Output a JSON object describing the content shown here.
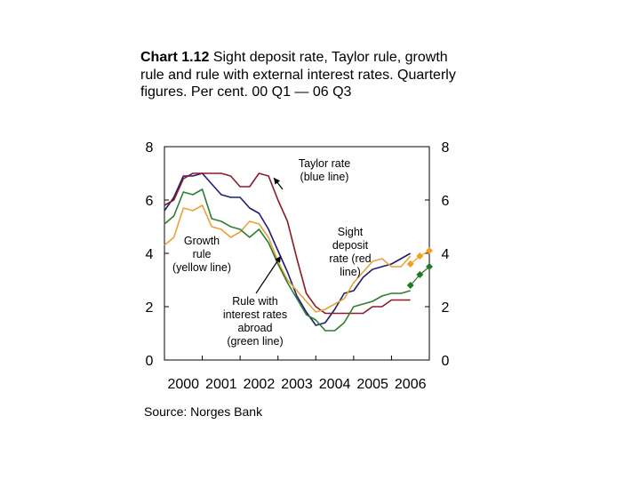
{
  "title_prefix": "Chart 1.12",
  "title_rest": " Sight deposit rate, Taylor rule, growth rule and rule with external interest rates. Quarterly figures. Per cent. 00 Q1 — 06 Q3",
  "source": "Source: Norges Bank",
  "chart_data": {
    "type": "line",
    "xlabel": "",
    "ylabel": "",
    "ylim": [
      0,
      8
    ],
    "xlim": [
      2000.0,
      2007.0
    ],
    "y_ticks_left": [
      "8",
      "6",
      "4",
      "2",
      "0"
    ],
    "y_ticks_right": [
      "8",
      "6",
      "4",
      "2",
      "0"
    ],
    "x_tick_labels": [
      "2000",
      "2001",
      "2002",
      "2003",
      "2004",
      "2005",
      "2006"
    ],
    "grid": false,
    "colors": {
      "taylor": "#1f1f6e",
      "sight": "#8b1a2b",
      "growth": "#e8a23a",
      "external": "#2e7d32",
      "forecast_growth": "#f0a020",
      "forecast_external": "#1e7a1e"
    },
    "series": [
      {
        "name": "Taylor rate (blue line)",
        "key": "taylor",
        "x": [
          2000.0,
          2000.25,
          2000.5,
          2000.75,
          2001.0,
          2001.25,
          2001.5,
          2001.75,
          2002.0,
          2002.25,
          2002.5,
          2002.75,
          2003.0,
          2003.25,
          2003.5,
          2003.75,
          2004.0,
          2004.25,
          2004.5,
          2004.75,
          2005.0,
          2005.25,
          2005.5,
          2005.75,
          2006.0,
          2006.25,
          2006.5
        ],
        "values": [
          5.6,
          6.1,
          6.9,
          6.9,
          7.0,
          6.6,
          6.2,
          6.1,
          6.1,
          5.7,
          5.5,
          4.9,
          4.1,
          3.3,
          2.4,
          1.8,
          1.3,
          1.4,
          1.9,
          2.5,
          2.6,
          3.1,
          3.4,
          3.5,
          3.6,
          3.8,
          4.0
        ]
      },
      {
        "name": "Sight deposit rate (red line)",
        "key": "sight",
        "x": [
          2000.0,
          2000.25,
          2000.5,
          2000.75,
          2001.0,
          2001.25,
          2001.5,
          2001.75,
          2002.0,
          2002.25,
          2002.5,
          2002.75,
          2003.0,
          2003.25,
          2003.5,
          2003.75,
          2004.0,
          2004.25,
          2004.5,
          2004.75,
          2005.0,
          2005.25,
          2005.5,
          2005.75,
          2006.0,
          2006.25,
          2006.5
        ],
        "values": [
          5.8,
          6.0,
          6.8,
          7.0,
          7.0,
          7.0,
          7.0,
          6.9,
          6.5,
          6.5,
          7.0,
          6.9,
          6.0,
          5.2,
          3.8,
          2.5,
          2.0,
          1.75,
          1.75,
          1.75,
          1.75,
          1.75,
          2.0,
          2.0,
          2.25,
          2.25,
          2.25
        ]
      },
      {
        "name": "Growth rule (yellow line)",
        "key": "growth",
        "x": [
          2000.0,
          2000.25,
          2000.5,
          2000.75,
          2001.0,
          2001.25,
          2001.5,
          2001.75,
          2002.0,
          2002.25,
          2002.5,
          2002.75,
          2003.0,
          2003.25,
          2003.5,
          2003.75,
          2004.0,
          2004.25,
          2004.5,
          2004.75,
          2005.0,
          2005.25,
          2005.5,
          2005.75,
          2006.0,
          2006.25,
          2006.5
        ],
        "values": [
          4.3,
          4.6,
          5.7,
          5.6,
          5.8,
          5.0,
          4.9,
          4.6,
          4.8,
          5.2,
          5.1,
          4.6,
          3.7,
          3.0,
          2.6,
          2.2,
          1.8,
          1.9,
          2.1,
          2.3,
          2.9,
          3.3,
          3.7,
          3.8,
          3.5,
          3.5,
          3.9
        ]
      },
      {
        "name": "Rule with interest rates abroad (green line)",
        "key": "external",
        "x": [
          2000.0,
          2000.25,
          2000.5,
          2000.75,
          2001.0,
          2001.25,
          2001.5,
          2001.75,
          2002.0,
          2002.25,
          2002.5,
          2002.75,
          2003.0,
          2003.25,
          2003.5,
          2003.75,
          2004.0,
          2004.25,
          2004.5,
          2004.75,
          2005.0,
          2005.25,
          2005.5,
          2005.75,
          2006.0,
          2006.25,
          2006.5
        ],
        "values": [
          5.1,
          5.4,
          6.3,
          6.2,
          6.4,
          5.3,
          5.2,
          5.0,
          4.9,
          4.6,
          4.9,
          4.4,
          3.6,
          2.9,
          2.3,
          1.7,
          1.5,
          1.1,
          1.1,
          1.4,
          2.0,
          2.1,
          2.2,
          2.4,
          2.5,
          2.5,
          2.6
        ]
      },
      {
        "name": "",
        "key": "forecast_growth",
        "x": [
          2006.5,
          2006.75,
          2007.0
        ],
        "values": [
          3.6,
          3.9,
          4.1
        ],
        "markers": "diamond"
      },
      {
        "name": "",
        "key": "forecast_external",
        "x": [
          2006.5,
          2006.75,
          2007.0
        ],
        "values": [
          2.8,
          3.2,
          3.5
        ],
        "markers": "diamond"
      }
    ],
    "annotations": [
      {
        "key": "taylor",
        "lines": [
          "Taylor rate",
          "(blue line)"
        ]
      },
      {
        "key": "growth",
        "lines": [
          "Growth",
          "rule",
          "(yellow line)"
        ]
      },
      {
        "key": "sight",
        "lines": [
          "Sight",
          "deposit",
          "rate (red",
          "line)"
        ]
      },
      {
        "key": "external",
        "lines": [
          "Rule with",
          "interest rates",
          "abroad",
          "(green line)"
        ]
      }
    ]
  }
}
